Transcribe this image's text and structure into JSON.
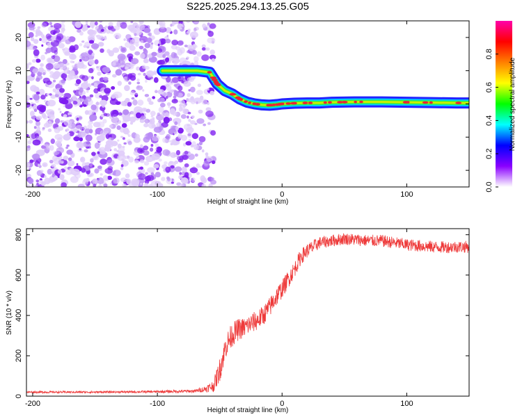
{
  "title": "S225.2025.294.13.25.G05",
  "colors": {
    "speckle_light": "#e0cdfa",
    "speckle_mid": "#b88af5",
    "speckle_dark": "#7d1cf0",
    "snr_line": "#ee3a3a",
    "frame": "#000000"
  },
  "chart_data": [
    {
      "type": "heatmap",
      "name": "spectrogram",
      "xlabel": "Height of straight line (km)",
      "ylabel": "Frequency (Hz)",
      "xlim": [
        -205,
        150
      ],
      "ylim": [
        -25,
        25
      ],
      "xticks": [
        -200,
        -100,
        0,
        100
      ],
      "yticks": [
        -20,
        -10,
        0,
        10,
        20
      ],
      "noise_region": {
        "x_from": -205,
        "x_to": -55,
        "y_from": -25,
        "y_to": 25
      },
      "tone_track": {
        "x": [
          -96,
          -80,
          -68,
          -58,
          -52,
          -46,
          -40,
          -34,
          -28,
          -22,
          -16,
          -10,
          -4,
          0,
          10,
          20,
          30,
          40,
          60,
          80,
          100,
          120,
          140,
          150
        ],
        "y": [
          10,
          10,
          10,
          9.5,
          6,
          4,
          3,
          1.5,
          0.5,
          0,
          -0.3,
          -0.4,
          -0.2,
          0,
          0.2,
          0.3,
          0.3,
          0.5,
          0.6,
          0.6,
          0.5,
          0.4,
          0.3,
          0.3
        ]
      },
      "colorbar": {
        "label": "Normalized spectral amplitude",
        "range": [
          0,
          1
        ],
        "ticks": [
          0.0,
          0.2,
          0.4,
          0.6,
          0.8
        ],
        "tick_labels": [
          "0.0",
          "0.2",
          "0.4",
          "0.6",
          "0.8"
        ],
        "colormap": [
          "#ffffff",
          "#8a00ff",
          "#0000ff",
          "#00ffff",
          "#00ff00",
          "#ffff00",
          "#ff8000",
          "#ff0000",
          "#ff00aa"
        ]
      }
    },
    {
      "type": "line",
      "name": "snr",
      "xlabel": "Height of straight line (km)",
      "ylabel": "SNR (10 * v/v)",
      "xlim": [
        -205,
        150
      ],
      "ylim": [
        0,
        830
      ],
      "xticks": [
        -200,
        -100,
        0,
        100
      ],
      "yticks": [
        0,
        200,
        400,
        600,
        800
      ],
      "series": [
        {
          "name": "SNR",
          "x": [
            -205,
            -150,
            -100,
            -70,
            -62,
            -55,
            -50,
            -45,
            -40,
            -35,
            -30,
            -25,
            -20,
            -15,
            -10,
            -5,
            0,
            5,
            10,
            15,
            20,
            25,
            30,
            40,
            50,
            60,
            70,
            80,
            90,
            100,
            110,
            120,
            130,
            140,
            150
          ],
          "y": [
            20,
            20,
            22,
            25,
            35,
            50,
            130,
            250,
            305,
            330,
            340,
            360,
            375,
            400,
            440,
            490,
            530,
            580,
            630,
            690,
            720,
            740,
            760,
            770,
            780,
            775,
            770,
            770,
            760,
            750,
            745,
            740,
            738,
            740,
            740
          ],
          "noise": [
            5,
            5,
            6,
            8,
            15,
            30,
            60,
            60,
            60,
            55,
            50,
            50,
            50,
            50,
            50,
            50,
            45,
            45,
            40,
            40,
            35,
            35,
            30,
            30,
            30,
            30,
            30,
            30,
            30,
            30,
            30,
            30,
            30,
            30,
            30
          ]
        }
      ]
    }
  ]
}
